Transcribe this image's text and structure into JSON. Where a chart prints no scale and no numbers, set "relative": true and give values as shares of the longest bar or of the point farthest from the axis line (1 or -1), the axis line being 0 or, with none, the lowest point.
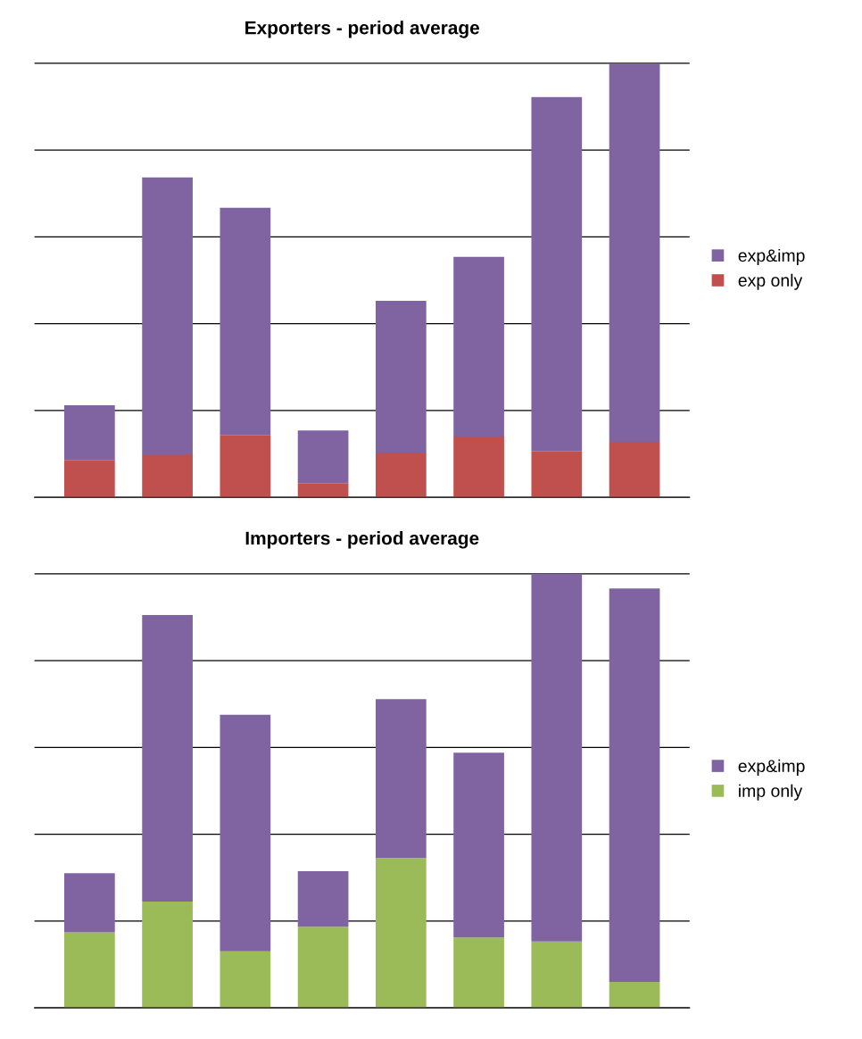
{
  "chart_data": [
    {
      "type": "bar",
      "title": "Exporters - period average",
      "stacked": true,
      "relative": true,
      "grid": "y",
      "legend": "right",
      "categories": [
        null,
        null,
        null,
        null,
        null,
        null,
        null,
        null
      ],
      "series": [
        {
          "name": "exp only",
          "color": "#c0504d",
          "values": [
            0.086,
            0.099,
            0.144,
            0.033,
            0.103,
            0.14,
            0.107,
            0.128
          ]
        },
        {
          "name": "exp&imp",
          "color": "#8064a2",
          "values": [
            0.126,
            0.638,
            0.523,
            0.121,
            0.35,
            0.414,
            0.815,
            0.872
          ]
        }
      ]
    },
    {
      "type": "bar",
      "title": "Importers - period average",
      "stacked": true,
      "relative": true,
      "grid": "y",
      "legend": "right",
      "categories": [
        null,
        null,
        null,
        null,
        null,
        null,
        null,
        null
      ],
      "series": [
        {
          "name": "imp only",
          "color": "#9bbb59",
          "values": [
            0.174,
            0.245,
            0.13,
            0.187,
            0.345,
            0.162,
            0.153,
            0.06
          ]
        },
        {
          "name": "exp&imp",
          "color": "#8064a2",
          "values": [
            0.136,
            0.66,
            0.545,
            0.128,
            0.366,
            0.426,
            0.847,
            0.906
          ]
        }
      ]
    }
  ]
}
